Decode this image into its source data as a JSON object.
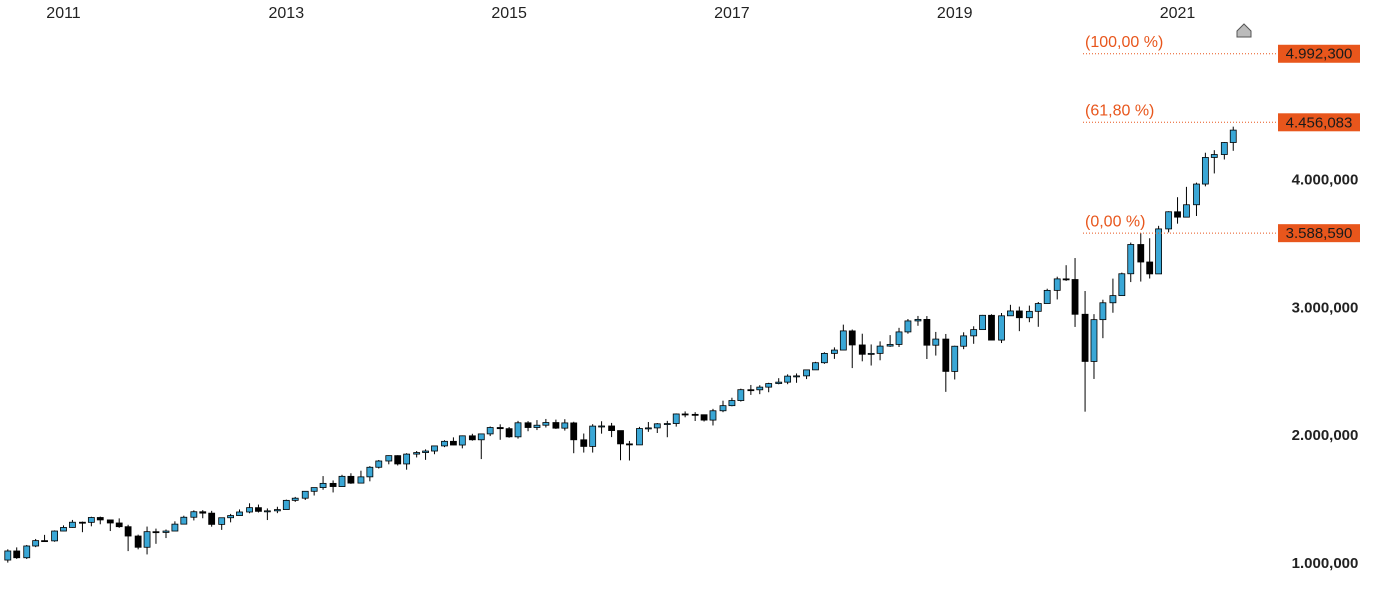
{
  "chart_data": {
    "type": "candlestick",
    "x": [
      2010.5,
      2010.58,
      2010.67,
      2010.75,
      2010.83,
      2010.92,
      2011,
      2011.08,
      2011.17,
      2011.25,
      2011.33,
      2011.42,
      2011.5,
      2011.58,
      2011.67,
      2011.75,
      2011.83,
      2011.92,
      2012,
      2012.08,
      2012.17,
      2012.25,
      2012.33,
      2012.42,
      2012.5,
      2012.58,
      2012.67,
      2012.75,
      2012.83,
      2012.92,
      2013,
      2013.08,
      2013.17,
      2013.25,
      2013.33,
      2013.42,
      2013.5,
      2013.58,
      2013.67,
      2013.75,
      2013.83,
      2013.92,
      2014,
      2014.08,
      2014.17,
      2014.25,
      2014.33,
      2014.42,
      2014.5,
      2014.58,
      2014.67,
      2014.75,
      2014.83,
      2014.92,
      2015,
      2015.08,
      2015.17,
      2015.25,
      2015.33,
      2015.42,
      2015.5,
      2015.58,
      2015.67,
      2015.75,
      2015.83,
      2015.92,
      2016,
      2016.08,
      2016.17,
      2016.25,
      2016.33,
      2016.42,
      2016.5,
      2016.58,
      2016.67,
      2016.75,
      2016.83,
      2016.92,
      2017,
      2017.08,
      2017.17,
      2017.25,
      2017.33,
      2017.42,
      2017.5,
      2017.58,
      2017.67,
      2017.75,
      2017.83,
      2017.92,
      2018,
      2018.08,
      2018.17,
      2018.25,
      2018.33,
      2018.42,
      2018.5,
      2018.58,
      2018.67,
      2018.75,
      2018.83,
      2018.92,
      2019,
      2019.08,
      2019.17,
      2019.25,
      2019.33,
      2019.42,
      2019.5,
      2019.58,
      2019.67,
      2019.75,
      2019.83,
      2019.92,
      2020,
      2020.08,
      2020.17,
      2020.25,
      2020.33,
      2020.42,
      2020.5,
      2020.58,
      2020.67,
      2020.75,
      2020.83,
      2020.92,
      2021,
      2021.08,
      2021.17,
      2021.25,
      2021.33,
      2021.42,
      2021.5
    ],
    "open": [
      1031,
      1102,
      1049,
      1141,
      1183,
      1181,
      1258,
      1286,
      1327,
      1326,
      1364,
      1345,
      1321,
      1292,
      1219,
      1131,
      1253,
      1247,
      1258,
      1312,
      1366,
      1409,
      1398,
      1310,
      1362,
      1379,
      1407,
      1441,
      1412,
      1416,
      1426,
      1498,
      1515,
      1569,
      1598,
      1631,
      1606,
      1686,
      1633,
      1682,
      1757,
      1806,
      1848,
      1783,
      1860,
      1872,
      1884,
      1924,
      1960,
      1931,
      2003,
      1972,
      2018,
      2068,
      2059,
      1995,
      2105,
      2068,
      2086,
      2107,
      2063,
      2104,
      1972,
      1920,
      2079,
      2080,
      2044,
      1940,
      1932,
      2060,
      2065,
      2097,
      2099,
      2174,
      2171,
      2168,
      2126,
      2199,
      2239,
      2279,
      2364,
      2363,
      2384,
      2412,
      2423,
      2470,
      2472,
      2519,
      2575,
      2648,
      2674,
      2824,
      2714,
      2641,
      2648,
      2705,
      2718,
      2816,
      2902,
      2914,
      2712,
      2760,
      2507,
      2704,
      2785,
      2834,
      2946,
      2752,
      2942,
      2980,
      2927,
      2977,
      3038,
      3141,
      3231,
      3226,
      2954,
      2585,
      2912,
      3044,
      3100,
      3271,
      3500,
      3363,
      3270,
      3622,
      3756,
      3714,
      3811,
      3973,
      4181,
      4204,
      4298
    ],
    "high": [
      1115,
      1130,
      1149,
      1196,
      1228,
      1263,
      1302,
      1345,
      1332,
      1370,
      1371,
      1346,
      1357,
      1307,
      1230,
      1293,
      1277,
      1270,
      1334,
      1378,
      1420,
      1422,
      1416,
      1364,
      1392,
      1427,
      1475,
      1465,
      1435,
      1448,
      1504,
      1525,
      1570,
      1598,
      1688,
      1654,
      1698,
      1710,
      1730,
      1766,
      1814,
      1850,
      1851,
      1867,
      1884,
      1897,
      1925,
      1968,
      1991,
      2006,
      2019,
      2018,
      2076,
      2093,
      2072,
      2120,
      2118,
      2126,
      2135,
      2130,
      2133,
      2113,
      2021,
      2094,
      2117,
      2104,
      2044,
      1963,
      2073,
      2111,
      2103,
      2120,
      2178,
      2194,
      2188,
      2170,
      2214,
      2278,
      2301,
      2372,
      2401,
      2399,
      2418,
      2454,
      2484,
      2491,
      2520,
      2582,
      2657,
      2695,
      2873,
      2835,
      2802,
      2718,
      2742,
      2791,
      2848,
      2917,
      2941,
      2940,
      2816,
      2800,
      2708,
      2813,
      2860,
      2949,
      2954,
      2964,
      3028,
      3014,
      3022,
      3050,
      3154,
      3248,
      3338,
      3394,
      3136,
      2955,
      3068,
      3233,
      3280,
      3515,
      3588,
      3549,
      3646,
      3760,
      3870,
      3951,
      3984,
      4218,
      4238,
      4302,
      4422
    ],
    "low": [
      1011,
      1040,
      1039,
      1132,
      1173,
      1174,
      1257,
      1284,
      1249,
      1295,
      1311,
      1258,
      1283,
      1101,
      1115,
      1075,
      1158,
      1203,
      1258,
      1312,
      1341,
      1358,
      1292,
      1267,
      1326,
      1378,
      1397,
      1403,
      1344,
      1398,
      1426,
      1486,
      1501,
      1536,
      1581,
      1560,
      1605,
      1627,
      1633,
      1647,
      1747,
      1780,
      1771,
      1738,
      1834,
      1815,
      1859,
      1915,
      1930,
      1905,
      1965,
      1821,
      2001,
      1972,
      1988,
      1981,
      2039,
      2048,
      2068,
      2057,
      2044,
      1867,
      1872,
      1872,
      2020,
      1993,
      1812,
      1810,
      1932,
      2034,
      2025,
      1992,
      2075,
      2148,
      2119,
      2115,
      2084,
      2188,
      2234,
      2271,
      2323,
      2329,
      2344,
      2406,
      2407,
      2418,
      2447,
      2520,
      2566,
      2605,
      2674,
      2533,
      2586,
      2553,
      2594,
      2699,
      2698,
      2802,
      2864,
      2604,
      2631,
      2347,
      2444,
      2681,
      2723,
      2848,
      2750,
      2729,
      2942,
      2822,
      2892,
      2856,
      3038,
      3070,
      3215,
      2855,
      2192,
      2448,
      2767,
      2966,
      3100,
      3206,
      3210,
      3234,
      3270,
      3595,
      3663,
      3714,
      3723,
      3955,
      4056,
      4165,
      4233
    ],
    "close": [
      1102,
      1049,
      1141,
      1183,
      1181,
      1258,
      1286,
      1327,
      1326,
      1364,
      1345,
      1321,
      1292,
      1219,
      1131,
      1253,
      1247,
      1258,
      1312,
      1366,
      1409,
      1398,
      1310,
      1362,
      1379,
      1407,
      1441,
      1412,
      1416,
      1426,
      1498,
      1515,
      1569,
      1598,
      1631,
      1606,
      1686,
      1633,
      1682,
      1757,
      1806,
      1848,
      1783,
      1860,
      1872,
      1884,
      1924,
      1960,
      1931,
      2003,
      1972,
      2018,
      2068,
      2059,
      1995,
      2105,
      2068,
      2086,
      2107,
      2063,
      2104,
      1972,
      1920,
      2079,
      2080,
      2044,
      1940,
      1932,
      2060,
      2065,
      2097,
      2099,
      2174,
      2171,
      2168,
      2126,
      2199,
      2239,
      2279,
      2364,
      2363,
      2384,
      2412,
      2423,
      2470,
      2472,
      2519,
      2575,
      2648,
      2674,
      2824,
      2714,
      2641,
      2648,
      2705,
      2718,
      2816,
      2902,
      2914,
      2712,
      2760,
      2507,
      2704,
      2785,
      2834,
      2946,
      2752,
      2942,
      2980,
      2927,
      2977,
      3038,
      3141,
      3231,
      3226,
      2954,
      2585,
      2912,
      3044,
      3100,
      3271,
      3500,
      3363,
      3270,
      3622,
      3756,
      3714,
      3811,
      3973,
      4181,
      4204,
      4298,
      4395
    ],
    "up_color": "#3aa7d6",
    "down_color": "#000000",
    "xlim": [
      2010.43,
      2021.83
    ],
    "xticks": [
      2011,
      2013,
      2015,
      2017,
      2019,
      2021
    ],
    "ylim": [
      781,
      5413
    ],
    "yticks": [
      {
        "value": 1000,
        "label": "1.000,000"
      },
      {
        "value": 2000,
        "label": "2.000,000"
      },
      {
        "value": 3000,
        "label": "3.000,000"
      },
      {
        "value": 4000,
        "label": "4.000,000"
      }
    ],
    "level_color": "#e8561c",
    "levels": [
      {
        "name": "(100,00 %)",
        "value": 4992.3,
        "value_label": "4.992,300"
      },
      {
        "name": "(61,80 %)",
        "value": 4456.083,
        "value_label": "4.456,083"
      },
      {
        "name": "(0,00 %)",
        "value": 3588.59,
        "value_label": "3.588,590"
      }
    ]
  }
}
